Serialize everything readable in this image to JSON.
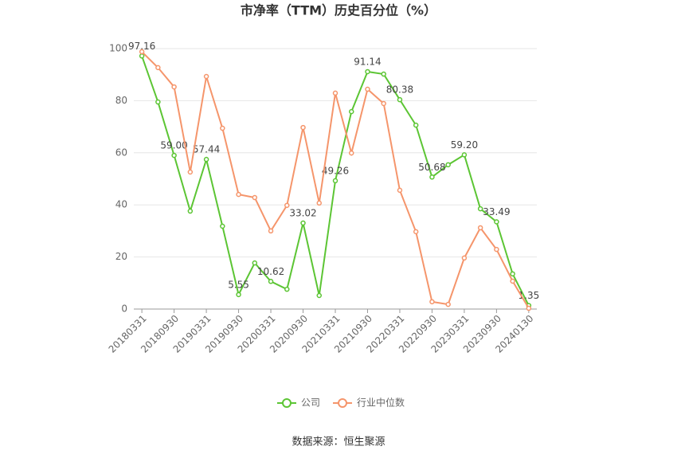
{
  "chart_data": {
    "type": "line",
    "title": "市净率（TTM）历史百分位（%）",
    "source": "数据来源：恒生聚源",
    "categories": [
      "20180331",
      null,
      "20180930",
      null,
      "20190331",
      null,
      "20190930",
      null,
      "20200331",
      null,
      "20200930",
      null,
      "20210331",
      null,
      "20210930",
      null,
      "20220331",
      null,
      "20220930",
      null,
      "20230331",
      null,
      "20230930",
      null,
      "20240130"
    ],
    "series": [
      {
        "name": "公司",
        "color": "#5cc534",
        "values": [
          97.16,
          79.5,
          59.0,
          37.6,
          57.44,
          31.8,
          5.55,
          17.7,
          10.62,
          7.6,
          33.02,
          5.2,
          49.26,
          75.8,
          91.14,
          90.2,
          80.38,
          70.6,
          50.68,
          55.4,
          59.2,
          38.5,
          33.49,
          13.5,
          1.35
        ],
        "value_labels": [
          "97.16",
          null,
          "59.00",
          null,
          "57.44",
          null,
          "5.55",
          null,
          "10.62",
          null,
          "33.02",
          null,
          "49.26",
          null,
          "91.14",
          null,
          "80.38",
          null,
          "50.68",
          null,
          "59.20",
          null,
          "33.49",
          null,
          "1.35"
        ]
      },
      {
        "name": "行业中位数",
        "color": "#f5956b",
        "values": [
          98.8,
          92.7,
          85.3,
          52.6,
          89.3,
          69.4,
          44.0,
          42.8,
          30.0,
          39.8,
          69.7,
          40.7,
          82.9,
          59.9,
          84.4,
          78.9,
          45.6,
          29.7,
          2.8,
          1.8,
          19.6,
          31.2,
          22.9,
          10.7,
          0.3
        ]
      }
    ],
    "ylim": [
      0,
      100
    ],
    "yticks": [
      0,
      20,
      40,
      60,
      80,
      100
    ],
    "grid": true
  }
}
